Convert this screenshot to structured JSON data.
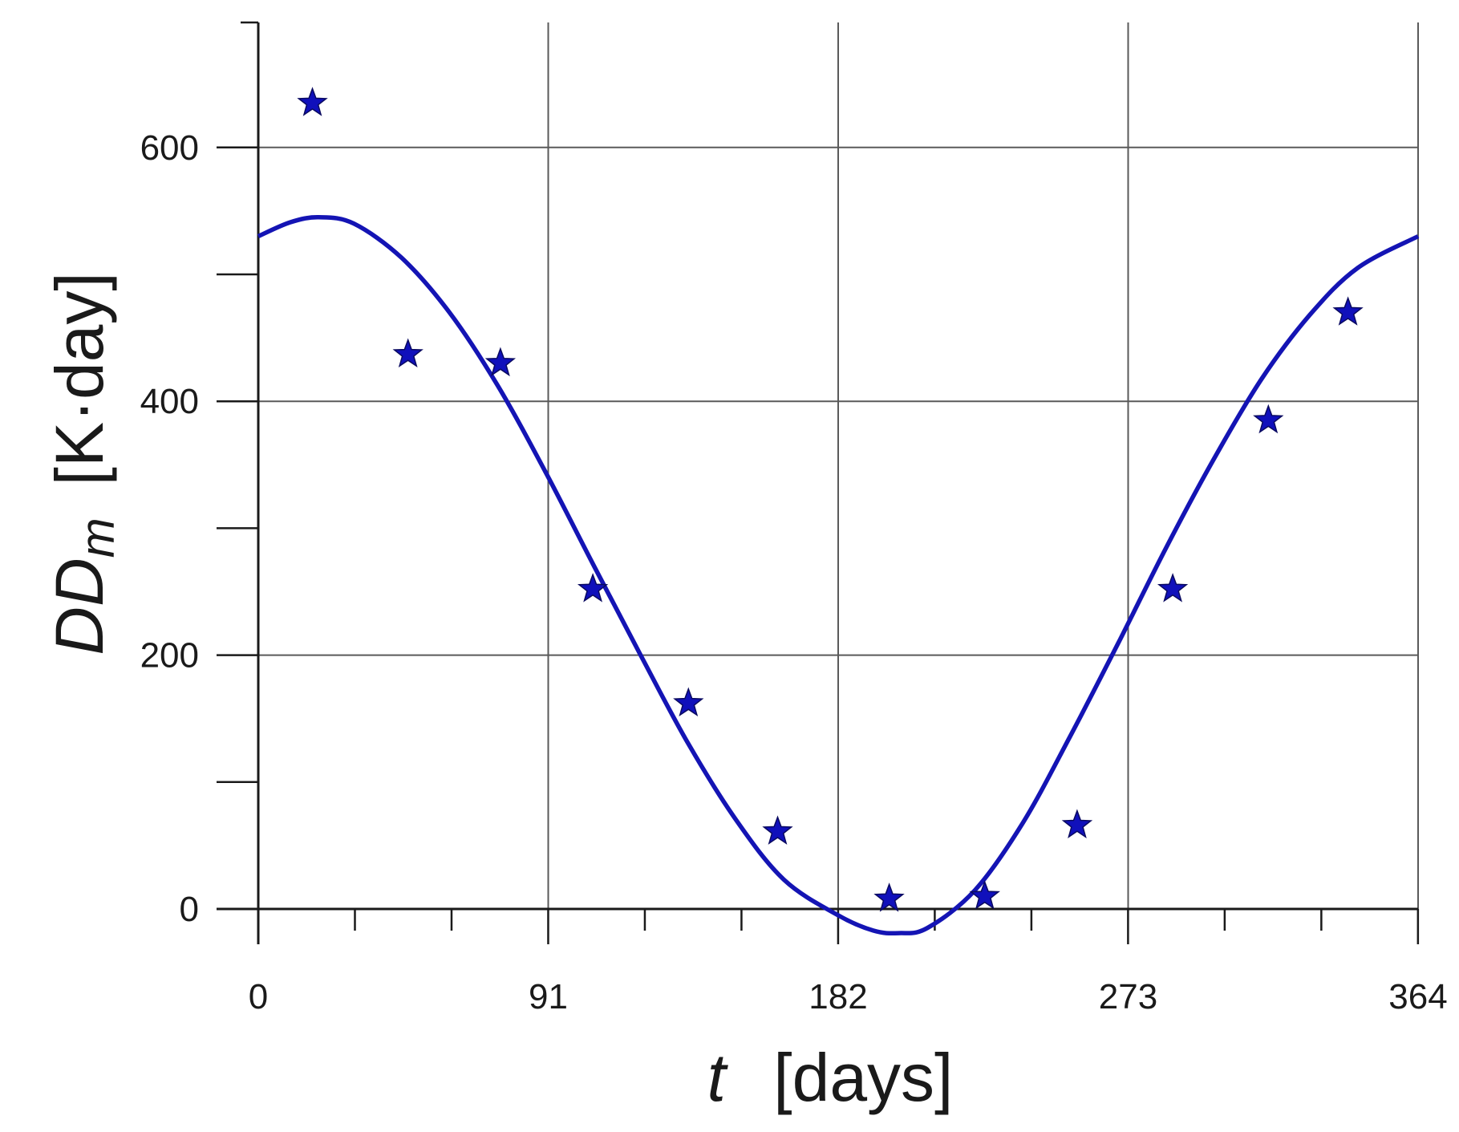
{
  "chart_data": {
    "type": "scatter",
    "xlabel": {
      "variable": "t",
      "unit": "[days]"
    },
    "ylabel": {
      "variable": "DD",
      "subscript": "m",
      "unit": "[K·day]"
    },
    "xlim": [
      0,
      364
    ],
    "ylim": [
      -90,
      700
    ],
    "x_ticks_labeled": [
      "0",
      "91",
      "182",
      "273",
      "364"
    ],
    "x_tick_values": [
      0,
      91,
      182,
      273,
      364
    ],
    "x_minor_step": 30.33,
    "y_ticks_labeled": [
      "0",
      "200",
      "400",
      "600"
    ],
    "y_tick_values": [
      0,
      200,
      400,
      600
    ],
    "y_minor_ticks": [
      100,
      300,
      500
    ],
    "grid": true,
    "series": [
      {
        "kind": "points",
        "marker": "star",
        "color": "#1010bb",
        "x": [
          17,
          47,
          76,
          105,
          135,
          163,
          198,
          228,
          257,
          287,
          317,
          342
        ],
        "y": [
          635,
          437,
          430,
          252,
          162,
          61,
          8,
          10,
          66,
          252,
          385,
          470
        ]
      },
      {
        "kind": "line",
        "color": "#1414b4",
        "x": [
          0,
          10,
          19,
          30,
          45,
          60,
          75,
          90,
          105,
          120,
          135,
          150,
          165,
          182,
          193,
          201,
          210,
          225,
          240,
          255,
          270,
          285,
          300,
          315,
          330,
          345,
          364
        ],
        "y": [
          530,
          541,
          545,
          540,
          513,
          470,
          413,
          345,
          272,
          200,
          130,
          70,
          23,
          -5,
          -17,
          -19,
          -15,
          15,
          68,
          137,
          210,
          285,
          355,
          418,
          468,
          505,
          530
        ]
      }
    ]
  }
}
